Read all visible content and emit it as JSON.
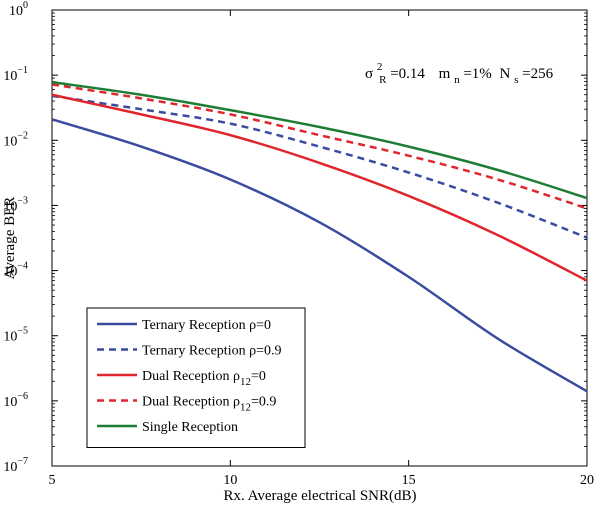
{
  "chart_data": {
    "type": "line",
    "title": "",
    "xlabel": "Rx. Average electrical SNR(dB)",
    "ylabel": "Average BER",
    "xlim": [
      5,
      20
    ],
    "ylim_exponents": [
      -7,
      0
    ],
    "y_scale": "log",
    "grid": false,
    "legend_position": "bottom-left",
    "annotation": {
      "sigma": "σ",
      "sigma_sup": "2",
      "sigma_sub": "R",
      "sigma_value": "=0.14",
      "m": "m",
      "m_sub": "n",
      "m_value": "=1%",
      "n": "N",
      "n_sub": "s",
      "n_value": "=256"
    },
    "x_ticks": [
      5,
      10,
      15,
      20
    ],
    "y_ticks": [
      {
        "base": "10",
        "exp": "0",
        "value": 1
      },
      {
        "base": "10",
        "exp": "−1",
        "value": 0.1
      },
      {
        "base": "10",
        "exp": "−2",
        "value": 0.01
      },
      {
        "base": "10",
        "exp": "−3",
        "value": 0.001
      },
      {
        "base": "10",
        "exp": "−4",
        "value": 0.0001
      },
      {
        "base": "10",
        "exp": "−5",
        "value": 1e-05
      },
      {
        "base": "10",
        "exp": "−6",
        "value": 1e-06
      },
      {
        "base": "10",
        "exp": "−7",
        "value": 1e-07
      }
    ],
    "x": [
      5,
      7.5,
      10,
      12.5,
      15,
      17.5,
      20
    ],
    "series": [
      {
        "label_main": "Ternary Reception ",
        "label_sym": "ρ",
        "label_sub": "",
        "label_value": "=0",
        "color": "#3a4ca0",
        "dash": "solid",
        "values": [
          0.021,
          0.008,
          0.0025,
          0.00055,
          8e-05,
          9e-06,
          1.4e-06
        ]
      },
      {
        "label_main": "Ternary Reception ",
        "label_sym": "ρ",
        "label_sub": "",
        "label_value": "=0.9",
        "color": "#3a4ca0",
        "dash": "dashed",
        "values": [
          0.048,
          0.03,
          0.018,
          0.008,
          0.0032,
          0.0011,
          0.00032
        ]
      },
      {
        "label_main": "Dual Reception ",
        "label_sym": "ρ",
        "label_sub": "12",
        "label_value": "=0",
        "color": "#e0262d",
        "dash": "solid",
        "values": [
          0.05,
          0.025,
          0.012,
          0.0045,
          0.0014,
          0.00035,
          7e-05
        ]
      },
      {
        "label_main": "Dual Reception ",
        "label_sym": "ρ",
        "label_sub": "12",
        "label_value": "=0.9",
        "color": "#e0262d",
        "dash": "dashed",
        "values": [
          0.072,
          0.044,
          0.025,
          0.012,
          0.0058,
          0.0025,
          0.0009
        ]
      },
      {
        "label_main": "Single Reception",
        "label_sym": "",
        "label_sub": "",
        "label_value": "",
        "color": "#1e7d34",
        "dash": "solid",
        "values": [
          0.078,
          0.05,
          0.029,
          0.016,
          0.008,
          0.0035,
          0.0013
        ]
      }
    ]
  }
}
